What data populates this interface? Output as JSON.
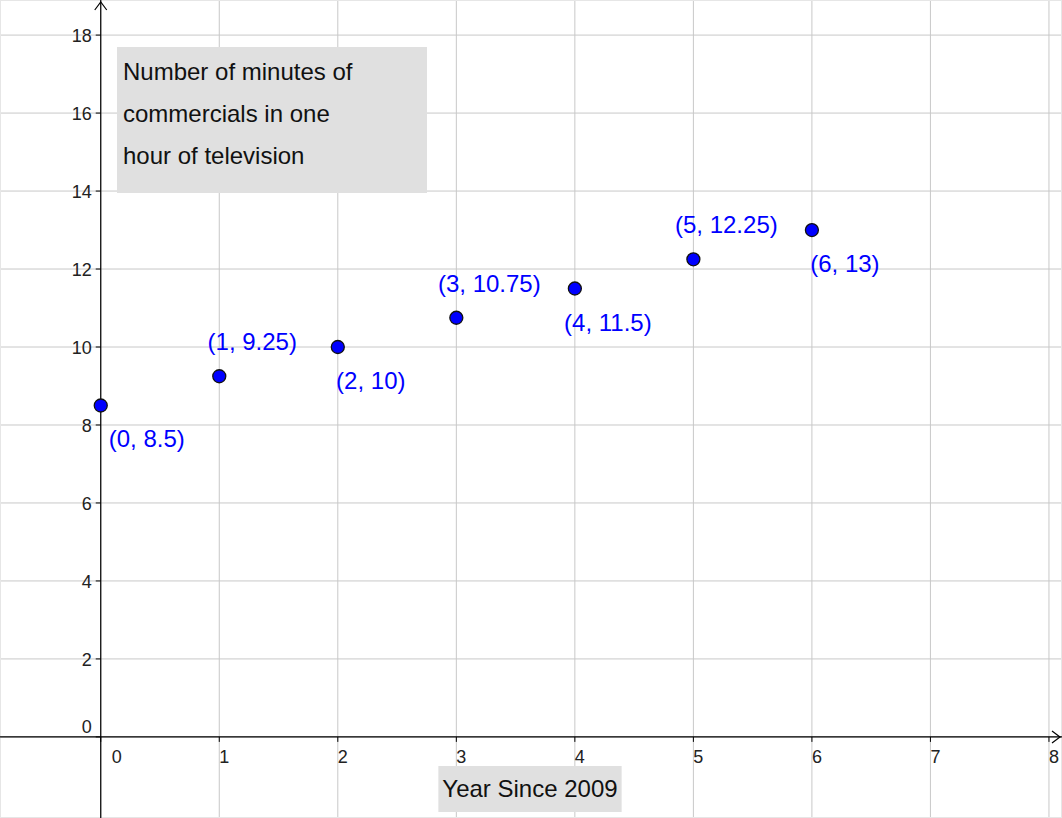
{
  "chart_data": {
    "type": "scatter",
    "title": "Number of minutes of commercials in one hour of television",
    "xlabel": "Year Since 2009",
    "x": [
      0,
      1,
      2,
      3,
      4,
      5,
      6
    ],
    "values": [
      8.5,
      9.25,
      10,
      10.75,
      11.5,
      12.25,
      13
    ],
    "value_labels": [
      "(0, 8.5)",
      "(1, 9.25)",
      "(2, 10)",
      "(3, 10.75)",
      "(4, 11.5)",
      "(5, 12.25)",
      "(6, 13)"
    ],
    "data_labels": true,
    "color": "#0000ff",
    "marker": "circle",
    "xlim": [
      -0.85,
      8.11
    ],
    "ylim": [
      -2.08,
      18.9
    ],
    "xticks": [
      0,
      1,
      2,
      3,
      4,
      5,
      6,
      7,
      8
    ],
    "yticks": [
      0,
      2,
      4,
      6,
      8,
      10,
      12,
      14,
      16,
      18
    ],
    "grid": true
  }
}
